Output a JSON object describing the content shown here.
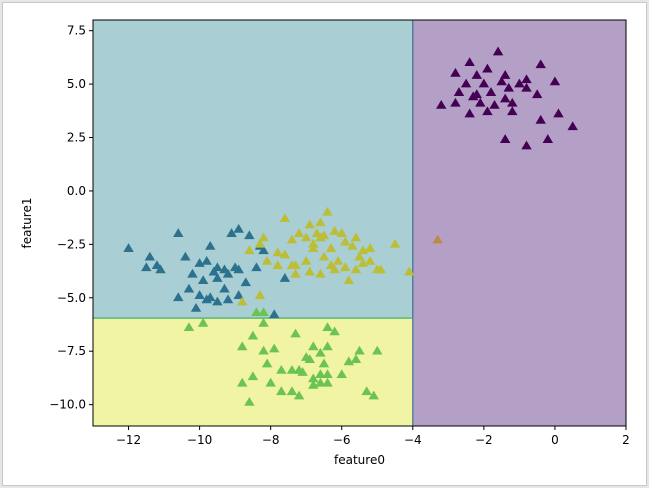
{
  "chart_data": {
    "type": "scatter",
    "title": "",
    "xlabel": "feature0",
    "ylabel": "feature1",
    "xlim": [
      -13,
      2
    ],
    "ylim": [
      -11,
      8
    ],
    "xticks": [
      -12,
      -10,
      -8,
      -6,
      -4,
      -2,
      0,
      2
    ],
    "xtick_labels": [
      "−12",
      "−10",
      "−8",
      "−6",
      "−4",
      "−2",
      "0",
      "2"
    ],
    "yticks": [
      -10.0,
      -7.5,
      -5.0,
      -2.5,
      0.0,
      2.5,
      5.0,
      7.5
    ],
    "ytick_labels": [
      "−10.0",
      "−7.5",
      "−5.0",
      "−2.5",
      "0.0",
      "2.5",
      "5.0",
      "7.5"
    ],
    "grid": false,
    "legend": "none",
    "marker": "triangle",
    "decision_regions": [
      {
        "name": "purple-region",
        "x": [
          -4,
          2
        ],
        "y": [
          -11,
          8
        ],
        "color": "#b4a0c6"
      },
      {
        "name": "teal-region",
        "x": [
          -13,
          -4
        ],
        "y": [
          -5.95,
          8
        ],
        "color": "#a9ced4"
      },
      {
        "name": "yellow-region",
        "x": [
          -13,
          -4
        ],
        "y": [
          -11,
          -5.95
        ],
        "color": "#f1f3a5"
      }
    ],
    "boundaries": [
      {
        "name": "vertical-boundary",
        "x": [
          -4,
          -4
        ],
        "y": [
          -11,
          8
        ],
        "color": "#3b6f8f"
      },
      {
        "name": "horizontal-boundary",
        "x": [
          -13,
          -4
        ],
        "y": [
          -5.95,
          -5.95
        ],
        "color": "#44b26b"
      }
    ],
    "series": [
      {
        "color": "#440154",
        "points": [
          [
            -1.6,
            6.5
          ],
          [
            -2.4,
            6.0
          ],
          [
            -1.9,
            5.7
          ],
          [
            -2.8,
            5.5
          ],
          [
            -2.2,
            5.4
          ],
          [
            -1.4,
            5.4
          ],
          [
            -0.4,
            5.9
          ],
          [
            -0.8,
            5.2
          ],
          [
            -1.0,
            5.0
          ],
          [
            0.0,
            5.1
          ],
          [
            -2.5,
            5.0
          ],
          [
            -2.0,
            5.0
          ],
          [
            -1.5,
            5.1
          ],
          [
            -2.7,
            4.6
          ],
          [
            -2.2,
            4.5
          ],
          [
            -1.8,
            4.6
          ],
          [
            -1.3,
            4.8
          ],
          [
            -0.8,
            4.8
          ],
          [
            -0.5,
            4.5
          ],
          [
            -3.2,
            4.0
          ],
          [
            -2.8,
            4.1
          ],
          [
            -2.1,
            4.1
          ],
          [
            -1.7,
            4.0
          ],
          [
            -1.4,
            4.3
          ],
          [
            -1.2,
            4.1
          ],
          [
            -2.4,
            3.6
          ],
          [
            -1.9,
            3.7
          ],
          [
            -1.2,
            3.7
          ],
          [
            -0.4,
            3.3
          ],
          [
            0.1,
            3.6
          ],
          [
            0.5,
            3.0
          ],
          [
            -1.4,
            2.4
          ],
          [
            -0.8,
            2.1
          ],
          [
            -0.2,
            2.4
          ],
          [
            -2.3,
            4.4
          ]
        ]
      },
      {
        "color": "#2c728e",
        "points": [
          [
            -12.0,
            -2.7
          ],
          [
            -11.4,
            -3.1
          ],
          [
            -11.5,
            -3.6
          ],
          [
            -11.2,
            -3.5
          ],
          [
            -11.1,
            -3.7
          ],
          [
            -10.6,
            -2.0
          ],
          [
            -10.4,
            -3.1
          ],
          [
            -9.7,
            -2.6
          ],
          [
            -10.2,
            -3.9
          ],
          [
            -10.0,
            -3.4
          ],
          [
            -9.9,
            -4.2
          ],
          [
            -9.6,
            -3.8
          ],
          [
            -9.5,
            -4.1
          ],
          [
            -9.8,
            -3.3
          ],
          [
            -9.5,
            -3.6
          ],
          [
            -9.3,
            -3.7
          ],
          [
            -9.2,
            -3.9
          ],
          [
            -9.0,
            -3.6
          ],
          [
            -8.9,
            -3.7
          ],
          [
            -8.6,
            -2.1
          ],
          [
            -9.1,
            -2.0
          ],
          [
            -8.7,
            -4.3
          ],
          [
            -8.9,
            -1.8
          ],
          [
            -8.3,
            -2.6
          ],
          [
            -8.2,
            -2.8
          ],
          [
            -8.4,
            -3.6
          ],
          [
            -10.6,
            -5.0
          ],
          [
            -10.0,
            -4.9
          ],
          [
            -9.7,
            -5.0
          ],
          [
            -10.3,
            -4.6
          ],
          [
            -10.1,
            -5.5
          ],
          [
            -9.8,
            -5.1
          ],
          [
            -9.5,
            -5.2
          ],
          [
            -9.2,
            -5.1
          ],
          [
            -9.3,
            -4.6
          ],
          [
            -8.9,
            -4.9
          ],
          [
            -7.9,
            -5.8
          ],
          [
            -7.6,
            -4.1
          ]
        ]
      },
      {
        "color": "#bcbf36",
        "points": [
          [
            -6.4,
            -1.0
          ],
          [
            -6.6,
            -1.5
          ],
          [
            -6.9,
            -1.6
          ],
          [
            -7.6,
            -1.3
          ],
          [
            -6.2,
            -1.9
          ],
          [
            -7.2,
            -2.0
          ],
          [
            -6.7,
            -2.0
          ],
          [
            -6.5,
            -2.1
          ],
          [
            -6.0,
            -2.0
          ],
          [
            -7.4,
            -2.3
          ],
          [
            -7.0,
            -2.2
          ],
          [
            -6.8,
            -2.5
          ],
          [
            -6.6,
            -2.2
          ],
          [
            -8.2,
            -2.2
          ],
          [
            -7.8,
            -2.9
          ],
          [
            -6.8,
            -2.7
          ],
          [
            -6.3,
            -2.7
          ],
          [
            -5.9,
            -2.4
          ],
          [
            -5.7,
            -2.6
          ],
          [
            -5.4,
            -2.8
          ],
          [
            -5.2,
            -2.7
          ],
          [
            -5.6,
            -2.2
          ],
          [
            -4.5,
            -2.5
          ],
          [
            -8.3,
            -2.5
          ],
          [
            -8.1,
            -3.3
          ],
          [
            -7.6,
            -3.0
          ],
          [
            -7.3,
            -3.5
          ],
          [
            -7.0,
            -3.3
          ],
          [
            -6.9,
            -3.8
          ],
          [
            -6.5,
            -3.1
          ],
          [
            -6.3,
            -3.5
          ],
          [
            -6.1,
            -3.3
          ],
          [
            -5.9,
            -3.6
          ],
          [
            -5.5,
            -3.1
          ],
          [
            -5.4,
            -3.4
          ],
          [
            -5.2,
            -3.3
          ],
          [
            -5.0,
            -3.7
          ],
          [
            -4.9,
            -3.7
          ],
          [
            -7.3,
            -3.9
          ],
          [
            -6.6,
            -3.9
          ],
          [
            -6.2,
            -3.7
          ],
          [
            -5.8,
            -4.2
          ],
          [
            -5.6,
            -3.7
          ],
          [
            -4.1,
            -3.8
          ],
          [
            -7.8,
            -3.5
          ],
          [
            -7.4,
            -3.5
          ],
          [
            -8.3,
            -4.9
          ],
          [
            -8.8,
            -5.2
          ],
          [
            -8.6,
            -2.8
          ]
        ]
      },
      {
        "color": "#6bc451",
        "points": [
          [
            -10.3,
            -6.4
          ],
          [
            -9.9,
            -6.2
          ],
          [
            -8.2,
            -6.2
          ],
          [
            -6.4,
            -6.4
          ],
          [
            -6.2,
            -6.6
          ],
          [
            -7.3,
            -6.7
          ],
          [
            -8.5,
            -6.8
          ],
          [
            -8.8,
            -7.3
          ],
          [
            -7.9,
            -7.4
          ],
          [
            -8.2,
            -7.5
          ],
          [
            -8.1,
            -8.1
          ],
          [
            -7.7,
            -8.4
          ],
          [
            -7.4,
            -8.4
          ],
          [
            -7.2,
            -8.4
          ],
          [
            -7.1,
            -8.5
          ],
          [
            -6.8,
            -7.3
          ],
          [
            -6.6,
            -7.6
          ],
          [
            -6.4,
            -7.3
          ],
          [
            -6.9,
            -7.9
          ],
          [
            -7.0,
            -7.8
          ],
          [
            -6.5,
            -8.1
          ],
          [
            -6.8,
            -8.8
          ],
          [
            -6.6,
            -8.6
          ],
          [
            -6.4,
            -8.6
          ],
          [
            -6.0,
            -8.6
          ],
          [
            -5.8,
            -8.0
          ],
          [
            -5.6,
            -7.9
          ],
          [
            -5.5,
            -7.5
          ],
          [
            -5.0,
            -7.5
          ],
          [
            -8.5,
            -8.7
          ],
          [
            -8.8,
            -9.0
          ],
          [
            -8.0,
            -9.0
          ],
          [
            -7.7,
            -9.4
          ],
          [
            -7.4,
            -9.4
          ],
          [
            -7.2,
            -9.6
          ],
          [
            -6.8,
            -9.1
          ],
          [
            -6.6,
            -9.0
          ],
          [
            -6.4,
            -9.0
          ],
          [
            -5.3,
            -9.4
          ],
          [
            -5.1,
            -9.6
          ],
          [
            -8.6,
            -9.9
          ],
          [
            -8.4,
            -5.7
          ],
          [
            -8.2,
            -5.7
          ]
        ]
      },
      {
        "color": "#b98b43",
        "points": [
          [
            -3.3,
            -2.3
          ]
        ]
      }
    ]
  }
}
